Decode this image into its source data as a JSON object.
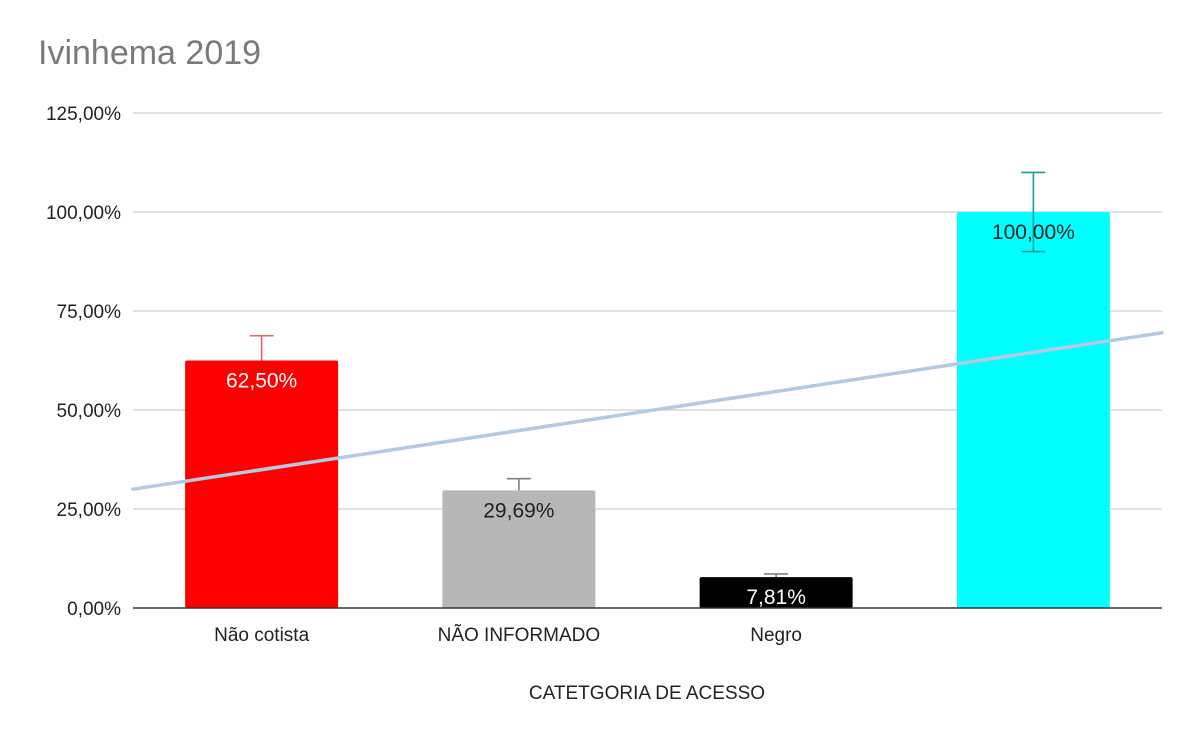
{
  "chart_data": {
    "type": "bar",
    "title": "Ivinhema 2019",
    "xlabel": "CATETGORIA DE ACESSO",
    "ylabel": "",
    "ylim": [
      0,
      125
    ],
    "yticks": [
      0,
      25,
      50,
      75,
      100,
      125
    ],
    "ytick_labels": [
      "0,00%",
      "25,00%",
      "50,00%",
      "75,00%",
      "100,00%",
      "125,00%"
    ],
    "categories": [
      "Não cotista",
      "NÃO INFORMADO",
      "Negro",
      ""
    ],
    "values": [
      62.5,
      29.69,
      7.81,
      100
    ],
    "data_labels": [
      "62,50%",
      "29,69%",
      "7,81%",
      "100,00%"
    ],
    "error_plus": [
      6.25,
      2.97,
      0.78,
      10
    ],
    "error_minus": [
      0,
      0,
      0,
      10
    ],
    "colors": [
      "#ff0000",
      "#b7b7b7",
      "#000000",
      "#00ffff"
    ],
    "label_colors": [
      "#ffffff",
      "#222222",
      "#ffffff",
      "#222222"
    ],
    "error_colors": [
      "#e06666",
      "#7f7f7f",
      "#7f7f7f",
      "#1a9a9a"
    ],
    "trendline": {
      "type": "linear",
      "color": "#b4c9e2",
      "start_value": 30,
      "end_value": 69.5
    },
    "grid": true,
    "legend": "none"
  }
}
